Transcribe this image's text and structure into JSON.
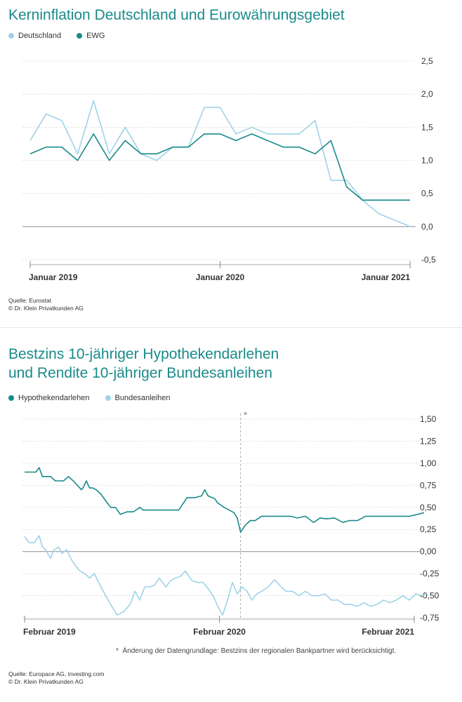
{
  "colors": {
    "dark": "#1a8a8a",
    "light": "#9fd3e8",
    "grid": "#c8c8c8",
    "axis": "#999999"
  },
  "chart1": {
    "title": "Kerninflation Deutschland und Eurowährungsgebiet",
    "source": "Quelle: Eurostat",
    "copyright": "© Dr. Klein Privatkunden AG",
    "legend": [
      "Deutschland",
      "EWG"
    ]
  },
  "chart2": {
    "title_line1": "Bestzins 10-jähriger Hypothekendarlehen",
    "title_line2": "und Rendite 10-jähriger Bundesanleihen",
    "legend": [
      "Hypothekendarlehen",
      "Bundesanleihen"
    ],
    "footnote": "Änderung der Datengrundlage: Bestzins der regionalen Bankpartner wird berücksichtigt.",
    "asterisk": "*",
    "source": "Quelle: Europace AG, investing.com",
    "copyright": "© Dr. Klein Privatkunden AG"
  },
  "chart_data": [
    {
      "type": "line",
      "title": "Kerninflation Deutschland und Eurowährungsgebiet",
      "ylim": [
        -0.5,
        2.5
      ],
      "yticks": [
        "2,5",
        "2,0",
        "1,5",
        "1,0",
        "0,5",
        "0,0",
        "-0,5"
      ],
      "ytick_values": [
        2.5,
        2.0,
        1.5,
        1.0,
        0.5,
        0.0,
        -0.5
      ],
      "x_labels": [
        {
          "label": "Januar 2019",
          "index": 0
        },
        {
          "label": "Januar 2020",
          "index": 12
        },
        {
          "label": "Januar 2021",
          "index": 24
        }
      ],
      "n_points": 25,
      "grid": true,
      "legend_position": "top-left",
      "series": [
        {
          "name": "Deutschland",
          "color": "#9fd3e8",
          "values": [
            1.3,
            1.7,
            1.6,
            1.1,
            1.9,
            1.1,
            1.5,
            1.1,
            1.0,
            1.2,
            1.2,
            1.8,
            1.8,
            1.4,
            1.5,
            1.4,
            1.4,
            1.4,
            1.6,
            0.7,
            0.7,
            0.4,
            0.2,
            0.1,
            0.0
          ]
        },
        {
          "name": "EWG",
          "color": "#1a8a8a",
          "values": [
            1.1,
            1.2,
            1.2,
            1.0,
            1.4,
            1.0,
            1.3,
            1.1,
            1.1,
            1.2,
            1.2,
            1.4,
            1.4,
            1.3,
            1.4,
            1.3,
            1.2,
            1.2,
            1.1,
            1.3,
            0.6,
            0.4,
            0.4,
            0.4,
            0.4
          ]
        }
      ]
    },
    {
      "type": "line",
      "title": "Bestzins 10-jähriger Hypothekendarlehen und Rendite 10-jähriger Bundesanleihen",
      "ylim": [
        -0.75,
        1.5
      ],
      "yticks": [
        "1,50",
        "1,25",
        "1,00",
        "0,75",
        "0,50",
        "0,25",
        "0,00",
        "-0,25",
        "-0,50",
        "-0,75"
      ],
      "ytick_values": [
        1.5,
        1.25,
        1.0,
        0.75,
        0.5,
        0.25,
        0.0,
        -0.25,
        -0.5,
        -0.75
      ],
      "x_labels": [
        {
          "label": "Februar 2019",
          "index": 0
        },
        {
          "label": "Februar 2020",
          "index": 12
        },
        {
          "label": "Februar 2021",
          "index": 24
        }
      ],
      "n_points": 25,
      "annotation": {
        "marker": "*",
        "index": 13.3
      },
      "grid": true,
      "legend_position": "top-left",
      "series": [
        {
          "name": "Hypothekendarlehen",
          "color": "#1a8a8a",
          "x": [
            0,
            0.7,
            0.9,
            1.1,
            1.6,
            1.9,
            2.4,
            2.7,
            3.0,
            3.5,
            3.6,
            3.8,
            4.0,
            4.2,
            4.4,
            4.7,
            5.1,
            5.3,
            5.6,
            5.9,
            6.3,
            6.7,
            7.1,
            7.3,
            7.6,
            8.0,
            8.3,
            8.7,
            9.1,
            9.5,
            10.0,
            10.5,
            10.9,
            11.1,
            11.3,
            11.7,
            11.9,
            12.3,
            12.6,
            12.9,
            13.1,
            13.3,
            13.6,
            13.9,
            14.2,
            14.6,
            15.0,
            15.5,
            16.0,
            16.4,
            16.8,
            17.3,
            17.8,
            18.2,
            18.6,
            19.1,
            19.6,
            20.0,
            20.5,
            21.0,
            21.4,
            21.8,
            22.3,
            22.8,
            23.2,
            23.7,
            24.2,
            24.6
          ],
          "values": [
            0.9,
            0.9,
            0.95,
            0.85,
            0.85,
            0.8,
            0.8,
            0.85,
            0.8,
            0.7,
            0.72,
            0.8,
            0.72,
            0.72,
            0.7,
            0.65,
            0.55,
            0.5,
            0.5,
            0.42,
            0.45,
            0.45,
            0.5,
            0.47,
            0.47,
            0.47,
            0.47,
            0.47,
            0.47,
            0.47,
            0.61,
            0.61,
            0.63,
            0.7,
            0.63,
            0.6,
            0.55,
            0.5,
            0.47,
            0.44,
            0.38,
            0.22,
            0.3,
            0.35,
            0.35,
            0.4,
            0.4,
            0.4,
            0.4,
            0.4,
            0.38,
            0.4,
            0.33,
            0.38,
            0.37,
            0.38,
            0.33,
            0.35,
            0.35,
            0.4,
            0.4,
            0.4,
            0.4,
            0.4,
            0.4,
            0.4,
            0.42,
            0.44
          ]
        },
        {
          "name": "Bundesanleihen",
          "color": "#9fd3e8",
          "x": [
            0,
            0.3,
            0.6,
            0.9,
            1.1,
            1.3,
            1.6,
            1.8,
            2.1,
            2.3,
            2.6,
            2.9,
            3.1,
            3.4,
            3.7,
            4.0,
            4.3,
            4.7,
            5.0,
            5.3,
            5.7,
            6.1,
            6.5,
            6.8,
            7.1,
            7.4,
            7.7,
            8.0,
            8.3,
            8.7,
            9.0,
            9.3,
            9.6,
            9.9,
            10.3,
            10.7,
            11.0,
            11.3,
            11.6,
            11.9,
            12.2,
            12.5,
            12.8,
            13.1,
            13.4,
            13.7,
            14.0,
            14.3,
            14.6,
            15.0,
            15.4,
            15.8,
            16.1,
            16.5,
            16.9,
            17.3,
            17.7,
            18.1,
            18.5,
            18.9,
            19.3,
            19.7,
            20.1,
            20.5,
            20.9,
            21.3,
            21.7,
            22.1,
            22.5,
            22.9,
            23.3,
            23.7,
            24.1,
            24.5,
            24.8
          ],
          "values": [
            0.17,
            0.1,
            0.1,
            0.18,
            0.05,
            0.02,
            -0.08,
            0.02,
            0.05,
            -0.02,
            0.02,
            -0.1,
            -0.15,
            -0.22,
            -0.25,
            -0.3,
            -0.25,
            -0.4,
            -0.5,
            -0.6,
            -0.72,
            -0.68,
            -0.6,
            -0.45,
            -0.55,
            -0.4,
            -0.4,
            -0.38,
            -0.3,
            -0.4,
            -0.33,
            -0.3,
            -0.28,
            -0.22,
            -0.33,
            -0.35,
            -0.35,
            -0.42,
            -0.5,
            -0.62,
            -0.72,
            -0.55,
            -0.35,
            -0.48,
            -0.4,
            -0.45,
            -0.55,
            -0.48,
            -0.45,
            -0.4,
            -0.32,
            -0.4,
            -0.45,
            -0.45,
            -0.5,
            -0.45,
            -0.5,
            -0.5,
            -0.48,
            -0.55,
            -0.55,
            -0.6,
            -0.6,
            -0.62,
            -0.58,
            -0.62,
            -0.6,
            -0.55,
            -0.58,
            -0.55,
            -0.5,
            -0.55,
            -0.48,
            -0.5,
            -0.47
          ]
        }
      ]
    }
  ]
}
